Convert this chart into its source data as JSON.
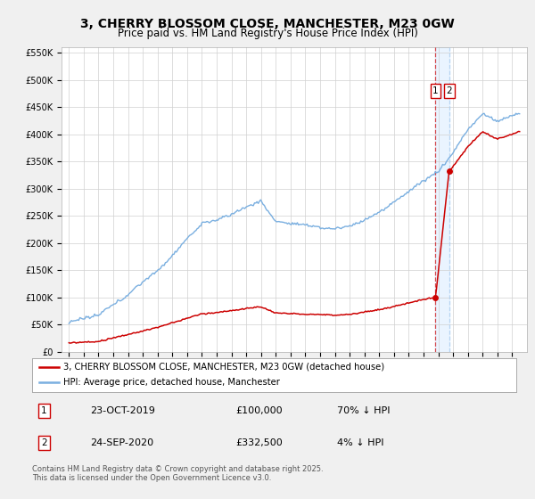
{
  "title": "3, CHERRY BLOSSOM CLOSE, MANCHESTER, M23 0GW",
  "subtitle": "Price paid vs. HM Land Registry's House Price Index (HPI)",
  "title_fontsize": 10,
  "subtitle_fontsize": 8.5,
  "bg_color": "#f0f0f0",
  "plot_bg_color": "#ffffff",
  "line1_color": "#cc0000",
  "line2_color": "#7aafe0",
  "vline1_color": "#cc0000",
  "vline2_color": "#aaccee",
  "shade_color": "#ddeeff",
  "ylim": [
    0,
    560000
  ],
  "yticks": [
    0,
    50000,
    100000,
    150000,
    200000,
    250000,
    300000,
    350000,
    400000,
    450000,
    500000,
    550000
  ],
  "ytick_labels": [
    "£0",
    "£50K",
    "£100K",
    "£150K",
    "£200K",
    "£250K",
    "£300K",
    "£350K",
    "£400K",
    "£450K",
    "£500K",
    "£550K"
  ],
  "sale1_date": "23-OCT-2019",
  "sale1_price": "£100,000",
  "sale1_hpi": "70% ↓ HPI",
  "sale1_x": 2019.81,
  "sale1_y": 100000,
  "sale2_date": "24-SEP-2020",
  "sale2_price": "£332,500",
  "sale2_hpi": "4% ↓ HPI",
  "sale2_x": 2020.73,
  "sale2_y": 332500,
  "legend1_label": "3, CHERRY BLOSSOM CLOSE, MANCHESTER, M23 0GW (detached house)",
  "legend2_label": "HPI: Average price, detached house, Manchester",
  "footnote": "Contains HM Land Registry data © Crown copyright and database right 2025.\nThis data is licensed under the Open Government Licence v3.0.",
  "xlim_left": 1994.5,
  "xlim_right": 2026.0
}
